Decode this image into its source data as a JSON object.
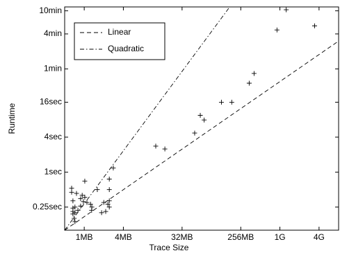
{
  "chart_data": {
    "type": "scatter",
    "x_label": "Trace Size",
    "y_label": "Runtime",
    "xscale": "log",
    "yscale": "log",
    "xlim": [
      0.5,
      8192
    ],
    "ylim": [
      0.1,
      700
    ],
    "xticks": [
      {
        "value": 1,
        "label": "1MB"
      },
      {
        "value": 4,
        "label": "4MB"
      },
      {
        "value": 32,
        "label": "32MB"
      },
      {
        "value": 256,
        "label": "256MB"
      },
      {
        "value": 1024,
        "label": "1G"
      },
      {
        "value": 4096,
        "label": "4G"
      }
    ],
    "yticks": [
      {
        "value": 0.25,
        "label": "0.25sec"
      },
      {
        "value": 1,
        "label": "1sec"
      },
      {
        "value": 4,
        "label": "4sec"
      },
      {
        "value": 16,
        "label": "16sec"
      },
      {
        "value": 60,
        "label": "1min"
      },
      {
        "value": 240,
        "label": "4min"
      },
      {
        "value": 600,
        "label": "10min"
      }
    ],
    "legend": "upper left",
    "points": {
      "marker": "+",
      "color": "#000000",
      "x": [
        1280,
        923,
        3500,
        410,
        345,
        129,
        186,
        61,
        70,
        50,
        12.6,
        17.4,
        2.8,
        2.43,
        1.02,
        2.43,
        1.59,
        2.43,
        2.31,
        2.43,
        2.14,
        1.85,
        1.31,
        1.25,
        0.97,
        0.88,
        0.72,
        0.67,
        0.64,
        0.76,
        0.93,
        0.67,
        0.7,
        0.72,
        0.67,
        0.8,
        1.1,
        0.64,
        1.02,
        0.67,
        0.72,
        0.88,
        1.3,
        2.0
      ],
      "values": [
        626,
        281,
        331,
        50,
        34,
        16,
        16,
        9.5,
        7.9,
        4.7,
        2.8,
        2.5,
        1.18,
        0.76,
        0.7,
        0.5,
        0.5,
        0.32,
        0.28,
        0.25,
        0.21,
        0.2,
        0.25,
        0.28,
        0.31,
        0.26,
        0.25,
        0.32,
        0.53,
        0.43,
        0.4,
        0.19,
        0.16,
        0.14,
        0.21,
        0.22,
        0.3,
        0.45,
        0.37,
        0.24,
        0.2,
        0.35,
        0.22,
        0.3
      ]
    },
    "series": [
      {
        "name": "Linear",
        "dash": "dashed",
        "color": "#000000",
        "x": [
          0.5,
          8192
        ],
        "values": [
          0.1,
          181
        ]
      },
      {
        "name": "Quadratic",
        "dash": "dashdot",
        "color": "#000000",
        "x": [
          0.5,
          173
        ],
        "values": [
          0.1,
          700
        ]
      }
    ]
  }
}
